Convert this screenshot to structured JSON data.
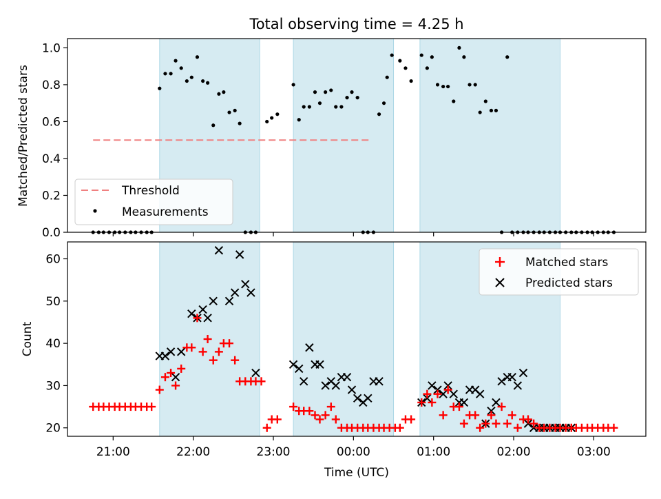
{
  "figure": {
    "title": "Total observing time = 4.25 h"
  },
  "chart_data": [
    {
      "type": "scatter",
      "ylabel": "Matched/Predicted stars",
      "ylim": [
        0,
        1.05
      ],
      "yticks": [
        0.0,
        0.2,
        0.4,
        0.6,
        0.8,
        1.0
      ],
      "ytick_labels": [
        "0.0",
        "0.2",
        "0.4",
        "0.6",
        "0.8",
        "1.0"
      ],
      "xlim": [
        20.43,
        27.65
      ],
      "shaded_intervals": [
        [
          21.58,
          22.83
        ],
        [
          23.25,
          24.5
        ],
        [
          24.83,
          26.58
        ]
      ],
      "legend": {
        "position": "lower-left"
      },
      "series": [
        {
          "name": "Threshold",
          "kind": "hline",
          "y": 0.5,
          "x_range": [
            20.75,
            24.22
          ],
          "color": "#f08080"
        },
        {
          "name": "Measurements",
          "kind": "scatter",
          "color": "#000000",
          "x": [
            20.75,
            20.82,
            20.88,
            20.95,
            21.02,
            21.08,
            21.15,
            21.22,
            21.28,
            21.35,
            21.42,
            21.48,
            21.58,
            21.65,
            21.72,
            21.78,
            21.85,
            21.92,
            21.98,
            22.05,
            22.12,
            22.18,
            22.25,
            22.32,
            22.38,
            22.45,
            22.52,
            22.58,
            22.65,
            22.72,
            22.78,
            22.92,
            22.98,
            23.05,
            23.25,
            23.32,
            23.38,
            23.45,
            23.52,
            23.58,
            23.65,
            23.72,
            23.78,
            23.85,
            23.92,
            23.98,
            24.05,
            24.12,
            24.18,
            24.25,
            24.32,
            24.38,
            24.42,
            24.48,
            24.58,
            24.65,
            24.72,
            24.85,
            24.92,
            24.98,
            25.05,
            25.12,
            25.18,
            25.25,
            25.32,
            25.38,
            25.45,
            25.52,
            25.58,
            25.65,
            25.72,
            25.78,
            25.85,
            25.92,
            25.98,
            26.05,
            26.12,
            26.18,
            26.25,
            26.32,
            26.38,
            26.45,
            26.52,
            26.58,
            26.65,
            26.72,
            26.78,
            26.85,
            26.92,
            26.98,
            27.05,
            27.12,
            27.18,
            27.25
          ],
          "y": [
            0,
            0,
            0,
            0,
            0,
            0,
            0,
            0,
            0,
            0,
            0,
            0,
            0.78,
            0.86,
            0.86,
            0.93,
            0.89,
            0.82,
            0.84,
            0.95,
            0.82,
            0.81,
            0.58,
            0.75,
            0.76,
            0.65,
            0.66,
            0.59,
            0,
            0,
            0,
            0.6,
            0.62,
            0.64,
            0.8,
            0.61,
            0.68,
            0.68,
            0.76,
            0.7,
            0.76,
            0.77,
            0.68,
            0.68,
            0.73,
            0.76,
            0.73,
            0,
            0,
            0,
            0.64,
            0.7,
            0.84,
            0.96,
            0.93,
            0.89,
            0.82,
            0.96,
            0.89,
            0.95,
            0.8,
            0.79,
            0.79,
            0.71,
            1.0,
            0.95,
            0.8,
            0.8,
            0.65,
            0.71,
            0.66,
            0.66,
            0,
            0.95,
            0,
            0,
            0,
            0,
            0,
            0,
            0,
            0,
            0,
            0,
            0,
            0,
            0,
            0,
            0,
            0,
            0,
            0,
            0,
            0
          ]
        }
      ]
    },
    {
      "type": "scatter",
      "xlabel": "Time (UTC)",
      "ylabel": "Count",
      "ylim": [
        18,
        64
      ],
      "yticks": [
        20,
        30,
        40,
        50,
        60
      ],
      "ytick_labels": [
        "20",
        "30",
        "40",
        "50",
        "60"
      ],
      "xlim": [
        20.43,
        27.65
      ],
      "xticks": [
        21,
        22,
        23,
        24,
        25,
        26,
        27
      ],
      "xtick_labels": [
        "21:00",
        "22:00",
        "23:00",
        "00:00",
        "01:00",
        "02:00",
        "03:00"
      ],
      "shaded_intervals": [
        [
          21.58,
          22.83
        ],
        [
          23.25,
          24.5
        ],
        [
          24.83,
          26.58
        ]
      ],
      "legend": {
        "position": "upper-right"
      },
      "series": [
        {
          "name": "Matched stars",
          "marker": "plus",
          "color": "#ff0000",
          "x": [
            20.75,
            20.82,
            20.88,
            20.95,
            21.02,
            21.08,
            21.15,
            21.22,
            21.28,
            21.35,
            21.42,
            21.48,
            21.58,
            21.65,
            21.72,
            21.78,
            21.85,
            21.92,
            21.98,
            22.05,
            22.12,
            22.18,
            22.25,
            22.32,
            22.38,
            22.45,
            22.52,
            22.58,
            22.65,
            22.72,
            22.78,
            22.85,
            22.92,
            22.98,
            23.05,
            23.25,
            23.32,
            23.38,
            23.45,
            23.52,
            23.58,
            23.65,
            23.72,
            23.78,
            23.85,
            23.92,
            23.98,
            24.05,
            24.12,
            24.18,
            24.25,
            24.32,
            24.38,
            24.45,
            24.52,
            24.58,
            24.65,
            24.72,
            24.85,
            24.92,
            24.98,
            25.05,
            25.12,
            25.18,
            25.25,
            25.32,
            25.38,
            25.45,
            25.52,
            25.58,
            25.65,
            25.72,
            25.78,
            25.85,
            25.92,
            25.98,
            26.05,
            26.12,
            26.18,
            26.25,
            26.32,
            26.38,
            26.45,
            26.52,
            26.58,
            26.65,
            26.72,
            26.78,
            26.85,
            26.92,
            26.98,
            27.05,
            27.12,
            27.18,
            27.25
          ],
          "y": [
            25,
            25,
            25,
            25,
            25,
            25,
            25,
            25,
            25,
            25,
            25,
            25,
            29,
            32,
            33,
            30,
            34,
            39,
            39,
            46,
            38,
            41,
            36,
            38,
            40,
            40,
            36,
            31,
            31,
            31,
            31,
            31,
            20,
            22,
            22,
            25,
            24,
            24,
            24,
            23,
            22,
            23,
            25,
            22,
            20,
            20,
            20,
            20,
            20,
            20,
            20,
            20,
            20,
            20,
            20,
            20,
            22,
            22,
            26,
            28,
            26,
            28,
            23,
            29,
            25,
            25,
            21,
            23,
            23,
            20,
            21,
            23,
            21,
            25,
            21,
            23,
            20,
            22,
            22,
            21,
            20,
            20,
            20,
            20,
            20,
            20,
            20,
            20,
            20,
            20,
            20,
            20,
            20,
            20,
            20
          ]
        },
        {
          "name": "Predicted stars",
          "marker": "x",
          "color": "#000000",
          "x": [
            21.58,
            21.65,
            21.72,
            21.78,
            21.85,
            21.98,
            22.05,
            22.12,
            22.18,
            22.25,
            22.32,
            22.45,
            22.52,
            22.58,
            22.65,
            22.72,
            22.78,
            23.25,
            23.32,
            23.38,
            23.45,
            23.52,
            23.58,
            23.65,
            23.72,
            23.78,
            23.85,
            23.92,
            23.98,
            24.05,
            24.12,
            24.18,
            24.25,
            24.32,
            24.85,
            24.92,
            24.98,
            25.05,
            25.12,
            25.18,
            25.25,
            25.32,
            25.38,
            25.45,
            25.52,
            25.58,
            25.65,
            25.72,
            25.78,
            25.85,
            25.92,
            25.98,
            26.05,
            26.12,
            26.18,
            26.25,
            26.32,
            26.38,
            26.45,
            26.52,
            26.58,
            26.65,
            26.72
          ],
          "y": [
            37,
            37,
            38,
            32,
            38,
            47,
            46,
            48,
            46,
            50,
            62,
            50,
            52,
            61,
            54,
            52,
            33,
            35,
            34,
            31,
            39,
            35,
            35,
            30,
            31,
            30,
            32,
            32,
            29,
            27,
            26,
            27,
            31,
            31,
            26,
            27,
            30,
            29,
            28,
            30,
            28,
            26,
            26,
            29,
            29,
            28,
            21,
            24,
            26,
            31,
            32,
            32,
            30,
            33,
            21,
            20,
            20,
            20,
            20,
            20,
            20,
            20,
            20
          ]
        }
      ]
    }
  ]
}
